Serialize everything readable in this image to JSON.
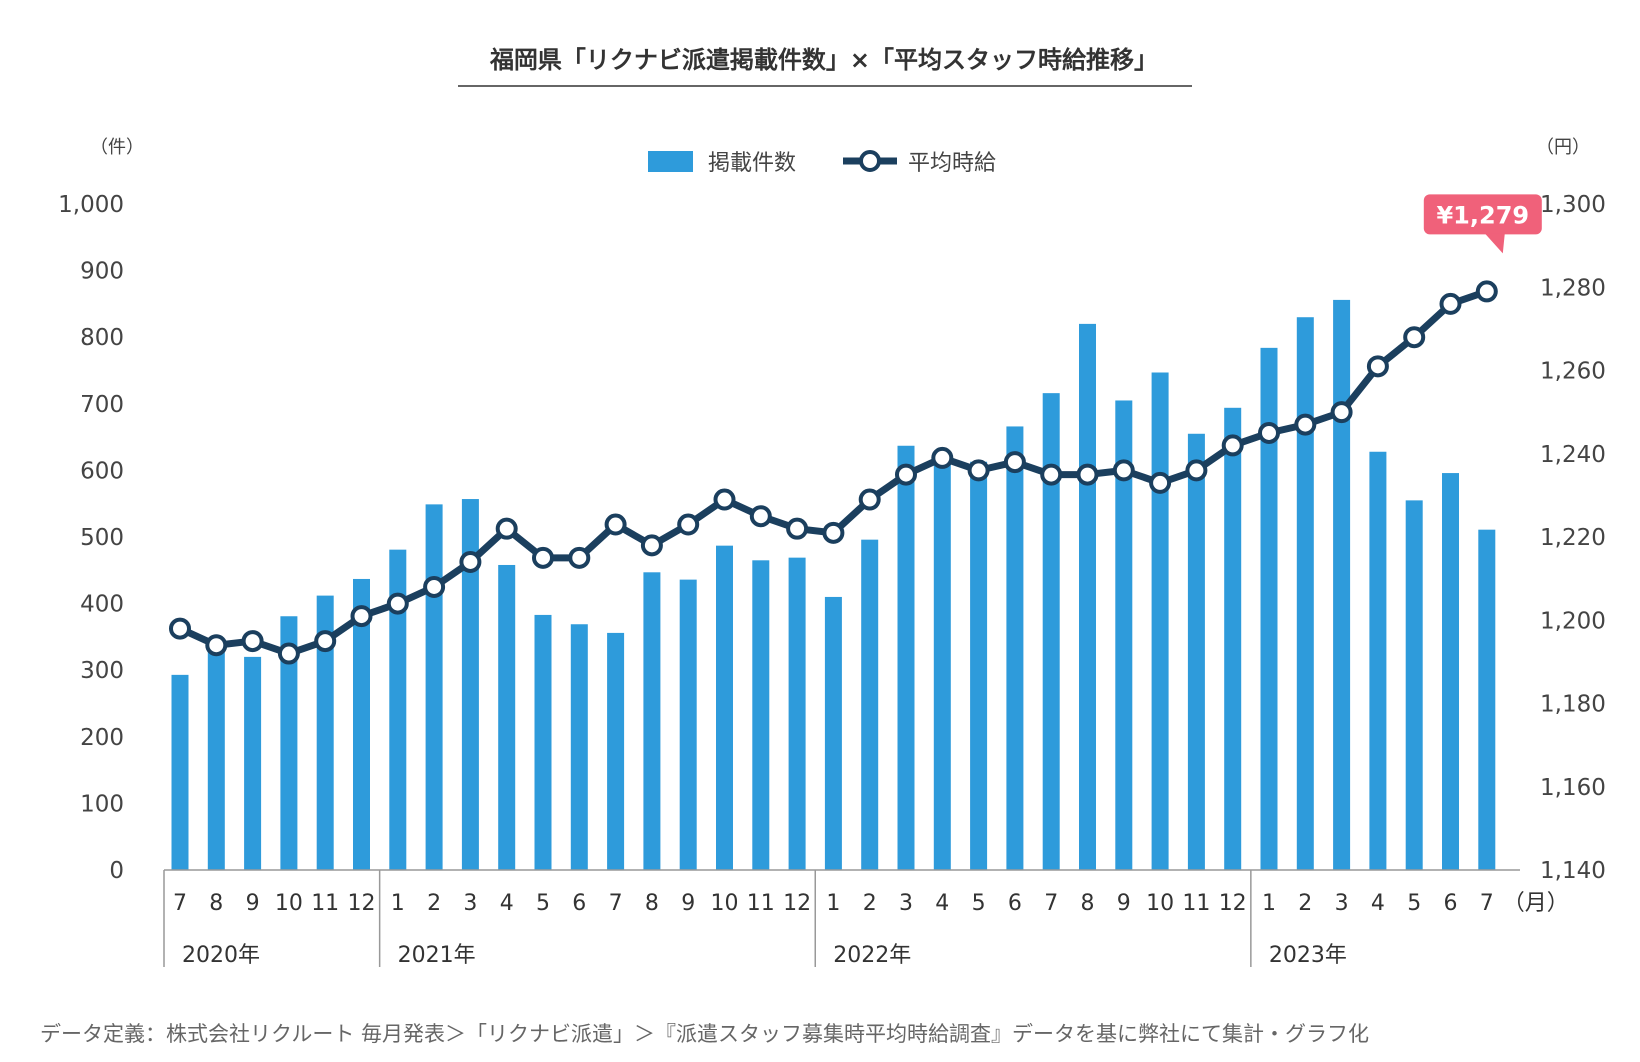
{
  "title": "福岡県「リクナビ派遣掲載件数」×「平均スタッフ時給推移」",
  "left_unit": "（件）",
  "right_unit": "（円）",
  "month_unit": "（月）",
  "legend": {
    "bars_label": "掲載件数",
    "line_label": "平均時給"
  },
  "left_ticks": [
    "0",
    "100",
    "200",
    "300",
    "400",
    "500",
    "600",
    "700",
    "800",
    "900",
    "1,000"
  ],
  "right_ticks": [
    "1,140",
    "1,160",
    "1,180",
    "1,200",
    "1,220",
    "1,240",
    "1,260",
    "1,280",
    "1,300"
  ],
  "years": [
    {
      "label": "2020年",
      "start_index": 0
    },
    {
      "label": "2021年",
      "start_index": 6
    },
    {
      "label": "2022年",
      "start_index": 18
    },
    {
      "label": "2023年",
      "start_index": 30
    }
  ],
  "callout": "¥1,279",
  "footnote": "データ定義：株式会社リクルート 毎月発表＞「リクナビ派遣」＞『派遣スタッフ募集時平均時給調査』データを基に弊社にて集計・グラフ化",
  "colors": {
    "bar": "#2E9BDB",
    "line": "#1B3F5E",
    "callout": "#F0617A",
    "axis": "#999999"
  },
  "chart_data": {
    "type": "bar+line",
    "categories": [
      "7",
      "8",
      "9",
      "10",
      "11",
      "12",
      "1",
      "2",
      "3",
      "4",
      "5",
      "6",
      "7",
      "8",
      "9",
      "10",
      "11",
      "12",
      "1",
      "2",
      "3",
      "4",
      "5",
      "6",
      "7",
      "8",
      "9",
      "10",
      "11",
      "12",
      "1",
      "2",
      "3",
      "4",
      "5",
      "6",
      "7"
    ],
    "left_ylim": [
      0,
      1000
    ],
    "right_ylim": [
      1140,
      1300
    ],
    "grid": false,
    "legend_position": "top-center",
    "series": [
      {
        "name": "掲載件数",
        "type": "bar",
        "axis": "left",
        "values": [
          293,
          338,
          320,
          381,
          412,
          437,
          481,
          549,
          557,
          458,
          383,
          369,
          356,
          447,
          436,
          487,
          465,
          469,
          410,
          496,
          637,
          614,
          613,
          666,
          716,
          820,
          705,
          747,
          655,
          694,
          784,
          830,
          856,
          628,
          555,
          596,
          511
        ]
      },
      {
        "name": "平均時給",
        "type": "line",
        "axis": "right",
        "values": [
          1198,
          1194,
          1195,
          1192,
          1195,
          1201,
          1204,
          1208,
          1214,
          1222,
          1215,
          1215,
          1223,
          1218,
          1223,
          1229,
          1225,
          1222,
          1221,
          1229,
          1235,
          1239,
          1236,
          1238,
          1235,
          1235,
          1236,
          1233,
          1236,
          1242,
          1245,
          1247,
          1250,
          1261,
          1268,
          1276,
          1279
        ]
      }
    ]
  }
}
